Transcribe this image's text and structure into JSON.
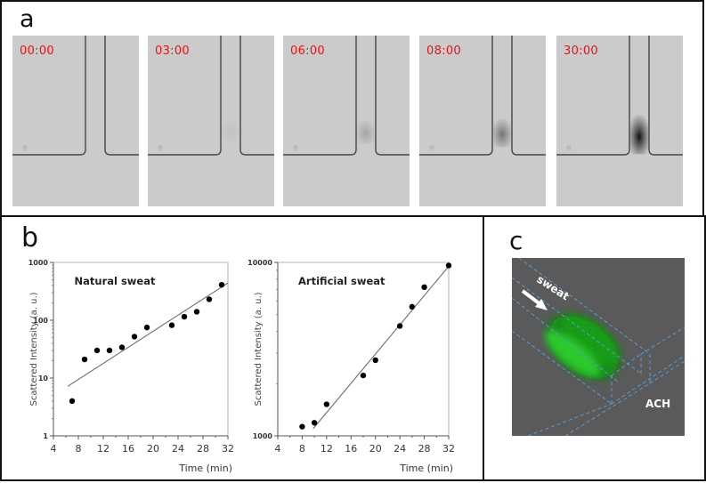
{
  "panels": {
    "a": {
      "label": "a",
      "frames": [
        {
          "time": "00:00",
          "fill": 0.0
        },
        {
          "time": "03:00",
          "fill": 0.05
        },
        {
          "time": "06:00",
          "fill": 0.2
        },
        {
          "time": "08:00",
          "fill": 0.45
        },
        {
          "time": "30:00",
          "fill": 1.0
        }
      ]
    },
    "b": {
      "label": "b"
    },
    "c": {
      "label": "c",
      "arrow_label": "sweat",
      "region_label": "ACH"
    }
  },
  "colors": {
    "time_label": "#ee1111",
    "fluorescence": "#22cc22",
    "dashed_lines": "#5b9bd5",
    "confocal_bg": "#5a5a5a"
  },
  "chart_data": [
    {
      "type": "scatter",
      "title": "Natural sweat",
      "xlabel": "Time (min)",
      "ylabel": "Scattered Intensity (a. u.)",
      "yscale": "log",
      "xlim": [
        4,
        32
      ],
      "ylim": [
        1,
        1000
      ],
      "xticks": [
        "4",
        "8",
        "12",
        "16",
        "20",
        "24",
        "28",
        "32"
      ],
      "yticks": [
        "1",
        "10",
        "100",
        "1000"
      ],
      "grid": false,
      "x": [
        7,
        9,
        11,
        13,
        15,
        17,
        19,
        23,
        25,
        27,
        29,
        31
      ],
      "y": [
        4,
        21,
        30,
        30,
        34,
        52,
        75,
        82,
        115,
        140,
        230,
        410
      ],
      "fit_line": {
        "x": [
          6.3,
          32
        ],
        "y": [
          7.2,
          440
        ]
      }
    },
    {
      "type": "scatter",
      "title": "Artificial sweat",
      "xlabel": "Time (min)",
      "ylabel": "Scattered Intensity (a. u.)",
      "yscale": "log",
      "xlim": [
        4,
        32
      ],
      "ylim": [
        1000,
        10000
      ],
      "xticks": [
        "4",
        "8",
        "12",
        "16",
        "20",
        "24",
        "28",
        "32"
      ],
      "yticks": [
        "1000",
        "10000"
      ],
      "grid": false,
      "x": [
        8,
        10,
        12,
        18,
        20,
        24,
        26,
        28,
        32
      ],
      "y": [
        1130,
        1190,
        1520,
        2230,
        2730,
        4300,
        5550,
        7200,
        9600
      ],
      "fit_line": {
        "x": [
          9.8,
          32
        ],
        "y": [
          1100,
          9500
        ]
      }
    }
  ]
}
